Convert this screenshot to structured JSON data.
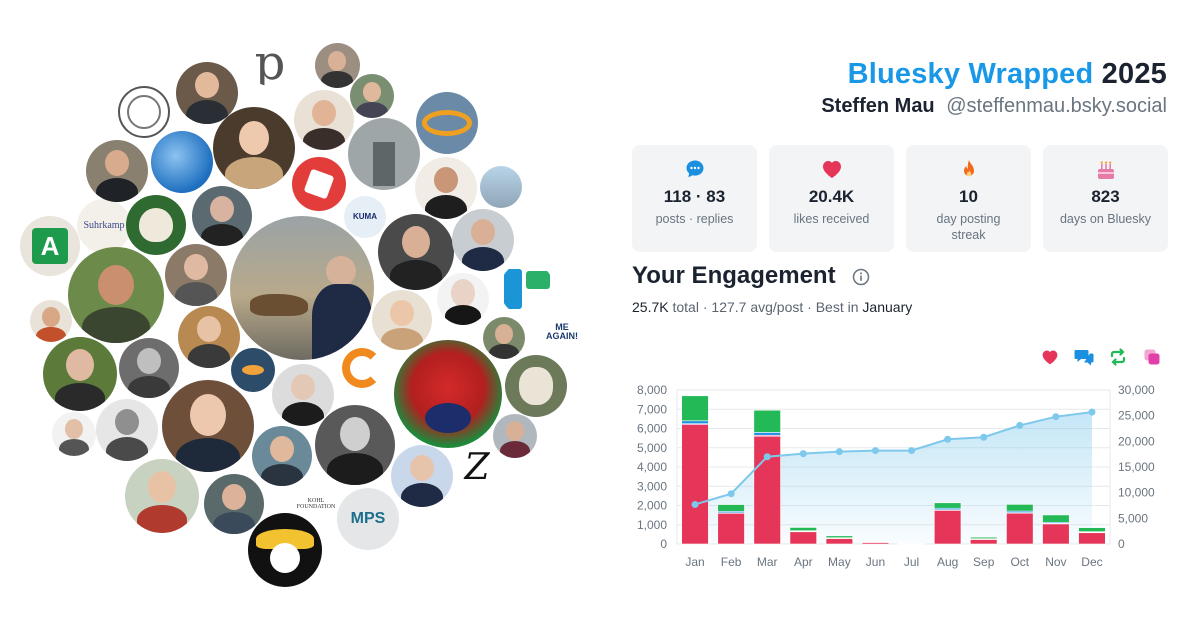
{
  "header": {
    "brand": "Bluesky Wrapped",
    "year": "2025",
    "user_name": "Steffen Mau",
    "handle": "@steffenmau.bsky.social"
  },
  "stats": [
    {
      "icon": "speech-bubble-icon",
      "value": "118 · 83",
      "label": "posts · replies"
    },
    {
      "icon": "heart-icon",
      "value": "20.4K",
      "label": "likes received"
    },
    {
      "icon": "flame-icon",
      "value": "10",
      "label": "day posting streak"
    },
    {
      "icon": "cake-icon",
      "value": "823",
      "label": "days on Bluesky"
    }
  ],
  "engagement": {
    "title": "Your Engagement",
    "total": "25.7K",
    "total_word": "total",
    "avg": "127.7 avg/post",
    "best_prefix": "Best in",
    "best_month": "January"
  },
  "avatar_texts": {
    "p_logo": "p",
    "suhrkamp": "Suhrkamp",
    "letter_a": "A",
    "z_logo": "Z",
    "mps": "MPS",
    "me_again": "ME AGAIN!",
    "kohl_foundation": "KOHL FOUNDATION",
    "kuma": "KUMA"
  },
  "colors": {
    "brand": "#1a98e8",
    "likes": "#e5365a",
    "replies": "#1b8fe0",
    "reposts": "#22b956",
    "quotes": "#e33fa8",
    "cumulative": "#7ec8ec"
  },
  "chart_data": {
    "type": "bar",
    "categories": [
      "Jan",
      "Feb",
      "Mar",
      "Apr",
      "May",
      "Jun",
      "Jul",
      "Aug",
      "Sep",
      "Oct",
      "Nov",
      "Dec"
    ],
    "series": [
      {
        "key": "likes",
        "values": [
          6200,
          1600,
          5600,
          650,
          300,
          100,
          20,
          1750,
          250,
          1600,
          1050,
          600
        ]
      },
      {
        "key": "quotes",
        "values": [
          50,
          20,
          50,
          10,
          5,
          2,
          0,
          30,
          5,
          30,
          20,
          10
        ]
      },
      {
        "key": "replies",
        "values": [
          150,
          80,
          150,
          30,
          20,
          10,
          5,
          80,
          20,
          80,
          60,
          30
        ]
      },
      {
        "key": "reposts",
        "values": [
          1300,
          350,
          1150,
          170,
          100,
          30,
          10,
          280,
          80,
          350,
          380,
          210
        ]
      }
    ],
    "cumulative": {
      "key": "cumulative",
      "values": [
        7700,
        9800,
        17000,
        17600,
        18000,
        18200,
        18200,
        20400,
        20800,
        23100,
        24800,
        25700
      ]
    },
    "y_left": {
      "min": 0,
      "max": 8000,
      "ticks": [
        0,
        1000,
        2000,
        3000,
        4000,
        5000,
        6000,
        7000,
        8000
      ],
      "tick_labels": [
        "0",
        "1,000",
        "2,000",
        "3,000",
        "4,000",
        "5,000",
        "6,000",
        "7,000",
        "8,000"
      ]
    },
    "y_right": {
      "min": 0,
      "max": 30000,
      "ticks": [
        0,
        5000,
        10000,
        15000,
        20000,
        25000,
        30000
      ],
      "tick_labels": [
        "0",
        "5,000",
        "10,000",
        "15,000",
        "20,000",
        "25,000",
        "30,000"
      ]
    },
    "grid": true
  }
}
